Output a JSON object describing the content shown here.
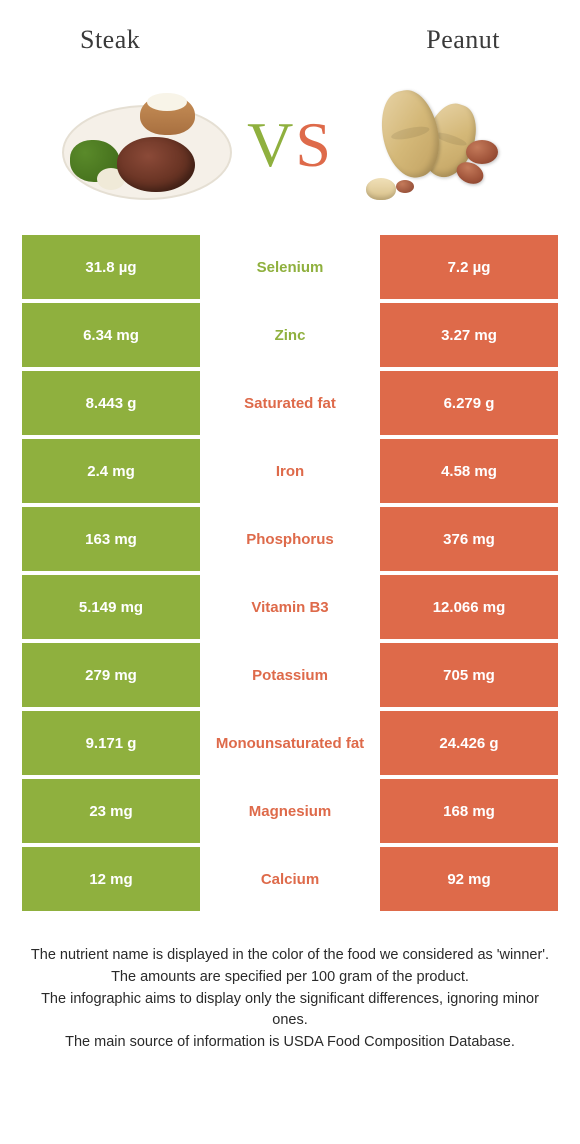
{
  "colors": {
    "left": "#8fb03e",
    "right": "#de6a4a",
    "background": "#ffffff"
  },
  "header": {
    "left_title": "Steak",
    "right_title": "Peanut",
    "vs_v": "V",
    "vs_s": "S"
  },
  "rows": [
    {
      "left": "31.8 µg",
      "label": "Selenium",
      "right": "7.2 µg",
      "winner": "left"
    },
    {
      "left": "6.34 mg",
      "label": "Zinc",
      "right": "3.27 mg",
      "winner": "left"
    },
    {
      "left": "8.443 g",
      "label": "Saturated fat",
      "right": "6.279 g",
      "winner": "right"
    },
    {
      "left": "2.4 mg",
      "label": "Iron",
      "right": "4.58 mg",
      "winner": "right"
    },
    {
      "left": "163 mg",
      "label": "Phosphorus",
      "right": "376 mg",
      "winner": "right"
    },
    {
      "left": "5.149 mg",
      "label": "Vitamin B3",
      "right": "12.066 mg",
      "winner": "right"
    },
    {
      "left": "279 mg",
      "label": "Potassium",
      "right": "705 mg",
      "winner": "right"
    },
    {
      "left": "9.171 g",
      "label": "Monounsaturated fat",
      "right": "24.426 g",
      "winner": "right"
    },
    {
      "left": "23 mg",
      "label": "Magnesium",
      "right": "168 mg",
      "winner": "right"
    },
    {
      "left": "12 mg",
      "label": "Calcium",
      "right": "92 mg",
      "winner": "right"
    }
  ],
  "footer": {
    "line1": "The nutrient name is displayed in the color of the food we considered as 'winner'.",
    "line2": "The amounts are specified per 100 gram of the product.",
    "line3": "The infographic aims to display only the significant differences, ignoring minor ones.",
    "line4": "The main source of information is USDA Food Composition Database."
  }
}
